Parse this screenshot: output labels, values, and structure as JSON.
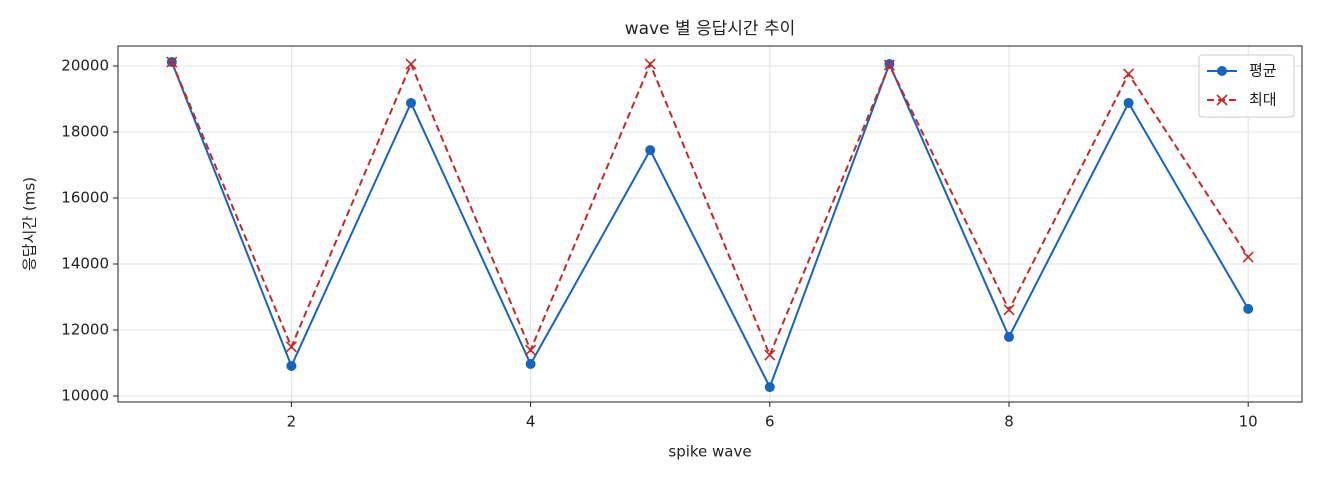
{
  "chart_data": {
    "type": "line",
    "title": "wave 별 응답시간 추이",
    "xlabel": "spike wave",
    "ylabel": "응답시간 (ms)",
    "x": [
      1,
      2,
      3,
      4,
      5,
      6,
      7,
      8,
      9,
      10
    ],
    "series": [
      {
        "name": "평균",
        "color": "#1565c0",
        "marker": "o",
        "linestyle": "solid",
        "values": [
          20120,
          10910,
          18880,
          10970,
          17450,
          10270,
          20060,
          11790,
          18880,
          12640
        ]
      },
      {
        "name": "최대",
        "color": "#c62828",
        "marker": "x",
        "linestyle": "dashed",
        "values": [
          20120,
          11490,
          20060,
          11390,
          20060,
          11240,
          20030,
          12610,
          19760,
          14210
        ]
      }
    ],
    "xlim": [
      0.55,
      10.45
    ],
    "xticks": [
      2,
      4,
      6,
      8,
      10
    ],
    "ylim": [
      9818,
      20606
    ],
    "yticks": [
      10000,
      12000,
      14000,
      16000,
      18000,
      20000
    ],
    "grid": true,
    "legend": "upper right"
  }
}
